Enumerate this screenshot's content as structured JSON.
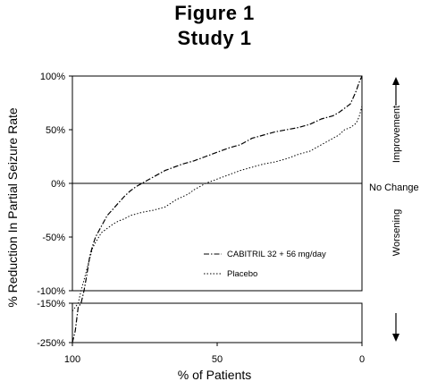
{
  "chart_data": {
    "type": "line",
    "title": "Figure 1",
    "subtitle": "Study 1",
    "xlabel": "% of Patients",
    "ylabel": "% Reduction In Partial Seizure Rate",
    "x_ticks": [
      "100",
      "50",
      "0"
    ],
    "xlim": [
      100,
      0
    ],
    "y_ticks_upper": [
      "100%",
      "50%",
      "0%",
      "-50%",
      "-100%"
    ],
    "y_ticks_lower": [
      "-150%",
      "-250%"
    ],
    "ylim_upper": [
      -100,
      100
    ],
    "ylim_lower": [
      -250,
      -150
    ],
    "reference_line": {
      "y": 0,
      "label": "No Change"
    },
    "right_labels": {
      "up": "Improvement",
      "down": "Worsening"
    },
    "series": [
      {
        "name": "CABITRIL 32 + 56 mg/day",
        "style": "dash-dot",
        "x": [
          100,
          99,
          98,
          97,
          96,
          95,
          94,
          93,
          92,
          90,
          88,
          86,
          84,
          82,
          80,
          78,
          76,
          74,
          72,
          70,
          68,
          65,
          62,
          58,
          54,
          50,
          46,
          42,
          38,
          34,
          30,
          26,
          22,
          18,
          14,
          10,
          8,
          6,
          4,
          3,
          2,
          1,
          0
        ],
        "y": [
          -250,
          -220,
          -160,
          -150,
          -100,
          -85,
          -68,
          -58,
          -50,
          -40,
          -30,
          -24,
          -18,
          -12,
          -7,
          -3,
          0,
          3,
          6,
          9,
          12,
          15,
          18,
          21,
          25,
          29,
          33,
          36,
          42,
          45,
          48,
          50,
          52,
          55,
          60,
          63,
          66,
          70,
          74,
          80,
          86,
          94,
          100
        ]
      },
      {
        "name": "Placebo",
        "style": "dotted",
        "x": [
          100,
          99,
          98,
          97,
          96,
          95,
          94,
          93,
          92,
          90,
          88,
          86,
          84,
          82,
          80,
          76,
          72,
          68,
          64,
          60,
          58,
          56,
          54,
          50,
          46,
          42,
          38,
          34,
          30,
          26,
          22,
          18,
          14,
          10,
          8,
          6,
          4,
          2,
          1,
          0
        ],
        "y": [
          -170,
          -160,
          -150,
          -100,
          -90,
          -80,
          -70,
          -60,
          -55,
          -46,
          -42,
          -38,
          -35,
          -33,
          -30,
          -27,
          -25,
          -22,
          -15,
          -10,
          -6,
          -3,
          0,
          4,
          8,
          12,
          15,
          18,
          20,
          23,
          27,
          30,
          36,
          42,
          45,
          50,
          52,
          56,
          62,
          72
        ]
      }
    ],
    "legend": "bottom-right"
  }
}
